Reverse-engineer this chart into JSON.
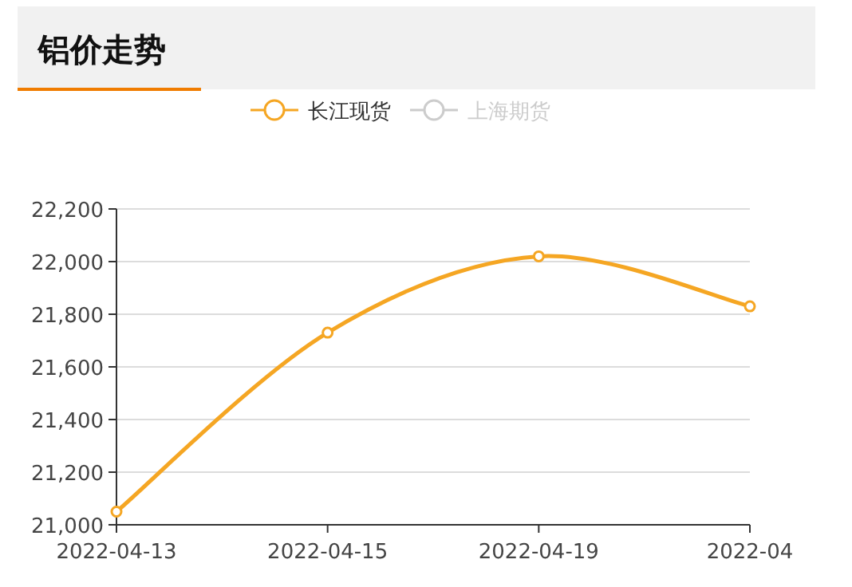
{
  "chart_data": {
    "type": "line",
    "title": "铝价走势",
    "categories": [
      "2022-04-13",
      "2022-04-15",
      "2022-04-19",
      "2022-04"
    ],
    "series": [
      {
        "name": "长江现货",
        "color": "#f5a623",
        "values": [
          21050,
          21730,
          22020,
          21830
        ]
      },
      {
        "name": "上海期货",
        "color": "#cccccc",
        "values": [
          null,
          null,
          null,
          null
        ]
      }
    ],
    "ylim": [
      21000,
      22200
    ],
    "yticks": [
      {
        "value": 21000,
        "label": "21,000"
      },
      {
        "value": 21200,
        "label": "21,200"
      },
      {
        "value": 21400,
        "label": "21,400"
      },
      {
        "value": 21600,
        "label": "21,600"
      },
      {
        "value": 21800,
        "label": "21,800"
      },
      {
        "value": 22000,
        "label": "22,000"
      },
      {
        "value": 22200,
        "label": "22,200"
      }
    ],
    "grid": "y",
    "legend": "top",
    "marker": "circle",
    "line_style": "solid"
  }
}
